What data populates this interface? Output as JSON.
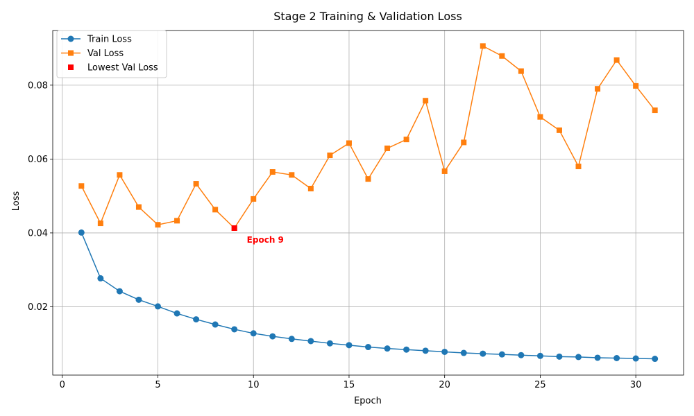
{
  "chart_data": {
    "type": "line",
    "title": "Stage 2 Training & Validation Loss",
    "xlabel": "Epoch",
    "ylabel": "Loss",
    "x": [
      1,
      2,
      3,
      4,
      5,
      6,
      7,
      8,
      9,
      10,
      11,
      12,
      13,
      14,
      15,
      16,
      17,
      18,
      19,
      20,
      21,
      22,
      23,
      24,
      25,
      26,
      27,
      28,
      29,
      30,
      31
    ],
    "xlim": [
      -0.5,
      32.5
    ],
    "ylim": [
      0.0015,
      0.0948
    ],
    "xticks": [
      0,
      5,
      10,
      15,
      20,
      25,
      30
    ],
    "xtick_labels": [
      "0",
      "5",
      "10",
      "15",
      "20",
      "25",
      "30"
    ],
    "yticks": [
      0.02,
      0.04,
      0.06,
      0.08
    ],
    "ytick_labels": [
      "0.02",
      "0.04",
      "0.06",
      "0.08"
    ],
    "grid": true,
    "legend_position": "top-left",
    "series": [
      {
        "name": "Train Loss",
        "color": "#1f77b4",
        "marker": "circle",
        "values": [
          0.0401,
          0.0277,
          0.0242,
          0.0219,
          0.0201,
          0.0182,
          0.0166,
          0.0152,
          0.0139,
          0.0128,
          0.012,
          0.0113,
          0.0107,
          0.0101,
          0.0096,
          0.0091,
          0.0087,
          0.0084,
          0.0081,
          0.0078,
          0.0075,
          0.0073,
          0.0071,
          0.0069,
          0.0067,
          0.0065,
          0.0064,
          0.0062,
          0.0061,
          0.006,
          0.0059
        ]
      },
      {
        "name": "Val Loss",
        "color": "#ff7f0e",
        "marker": "square",
        "values": [
          0.0527,
          0.0426,
          0.0557,
          0.047,
          0.0422,
          0.0433,
          0.0533,
          0.0463,
          0.0413,
          0.0492,
          0.0565,
          0.0557,
          0.052,
          0.061,
          0.0643,
          0.0546,
          0.0629,
          0.0653,
          0.0758,
          0.0567,
          0.0645,
          0.0906,
          0.0879,
          0.0838,
          0.0714,
          0.0678,
          0.058,
          0.079,
          0.0868,
          0.0798,
          0.0732
        ]
      }
    ],
    "highlight": {
      "name": "Lowest Val Loss",
      "color": "#ff0000",
      "marker": "square",
      "x": 9,
      "y": 0.0413,
      "label": "Epoch 9"
    }
  }
}
